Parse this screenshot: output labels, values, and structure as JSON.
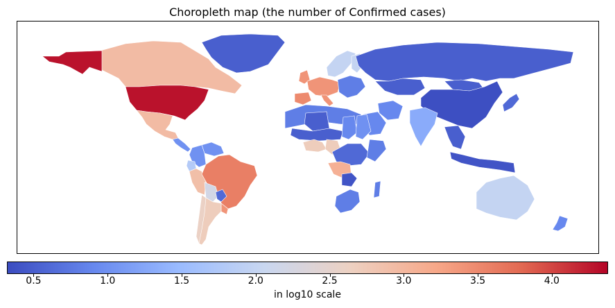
{
  "title": "Choropleth map (the number of Confirmed cases)",
  "colorbar": {
    "label": "in log10 scale",
    "min": 0.32,
    "max": 4.38,
    "ticks": [
      "0.5",
      "1.0",
      "1.5",
      "2.0",
      "2.5",
      "3.0",
      "3.5",
      "4.0"
    ],
    "colormap": "coolwarm",
    "colors": [
      "#3b4cc0",
      "#6788ee",
      "#9abbff",
      "#c9d7f0",
      "#edd1c2",
      "#f7a889",
      "#e26952",
      "#b40426"
    ]
  },
  "regions": [
    {
      "name": "United States",
      "log10": 4.3
    },
    {
      "name": "Canada",
      "log10": 2.95
    },
    {
      "name": "Mexico",
      "log10": 2.95
    },
    {
      "name": "Brazil",
      "log10": 3.6
    },
    {
      "name": "Peru",
      "log10": 2.9
    },
    {
      "name": "Chile",
      "log10": 2.6
    },
    {
      "name": "Argentina",
      "log10": 2.7
    },
    {
      "name": "Bolivia",
      "log10": 2.2
    },
    {
      "name": "Paraguay",
      "log10": 0.6
    },
    {
      "name": "Uruguay",
      "log10": 3.4
    },
    {
      "name": "Colombia",
      "log10": 1.0
    },
    {
      "name": "Venezuela",
      "log10": 1.0
    },
    {
      "name": "Ecuador",
      "log10": 1.8
    },
    {
      "name": "Greenland",
      "log10": 0.5
    },
    {
      "name": "Russia",
      "log10": 0.5
    },
    {
      "name": "China",
      "log10": 0.35
    },
    {
      "name": "Mongolia",
      "log10": 0.5
    },
    {
      "name": "Kazakhstan",
      "log10": 0.5
    },
    {
      "name": "Scandinavia",
      "log10": 2.0
    },
    {
      "name": "Finland",
      "log10": 2.0
    },
    {
      "name": "Western Europe",
      "log10": 3.4
    },
    {
      "name": "Spain",
      "log10": 3.5
    },
    {
      "name": "Eastern Europe",
      "log10": 0.8
    },
    {
      "name": "India",
      "log10": 1.3
    },
    {
      "name": "Iran",
      "log10": 0.9
    },
    {
      "name": "Saudi Arabia",
      "log10": 0.9
    },
    {
      "name": "North Africa",
      "log10": 0.8
    },
    {
      "name": "Algeria",
      "log10": 0.5
    },
    {
      "name": "Sahel",
      "log10": 0.5
    },
    {
      "name": "Chad",
      "log10": 0.9
    },
    {
      "name": "Sudan",
      "log10": 1.0
    },
    {
      "name": "Central Africa",
      "log10": 0.6
    },
    {
      "name": "Cameroon",
      "log10": 2.7
    },
    {
      "name": "Angola",
      "log10": 3.1
    },
    {
      "name": "Zambia",
      "log10": 0.4
    },
    {
      "name": "South Africa",
      "log10": 0.8
    },
    {
      "name": "East Africa",
      "log10": 0.8
    },
    {
      "name": "Southeast Asia",
      "log10": 0.5
    },
    {
      "name": "Indonesia",
      "log10": 0.4
    },
    {
      "name": "Japan",
      "log10": 0.6
    },
    {
      "name": "Australia",
      "log10": 2.0
    },
    {
      "name": "New Zealand",
      "log10": 0.9
    }
  ]
}
